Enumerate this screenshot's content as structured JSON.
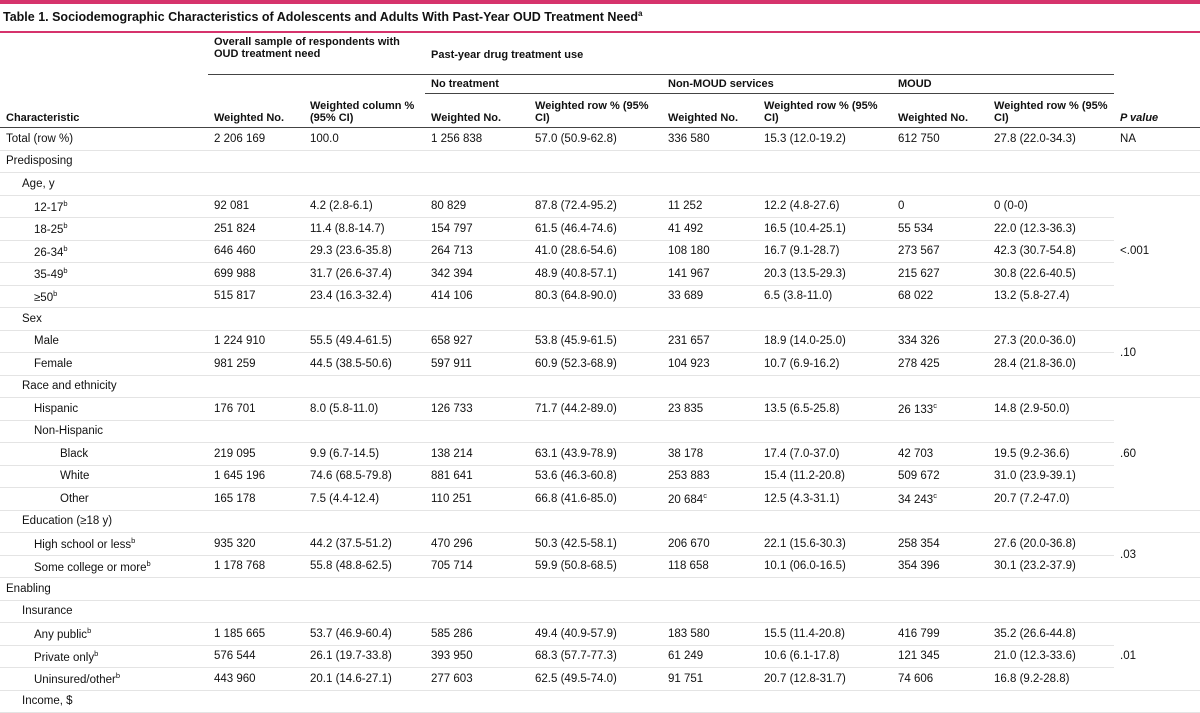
{
  "caption": {
    "text": "Table 1. Sociodemographic Characteristics of Adolescents and Adults With Past-Year OUD Treatment Need",
    "sup": "a"
  },
  "header": {
    "overall": "Overall sample of respondents with OUD treatment need",
    "past_year": "Past-year drug treatment use",
    "no_treatment": "No treatment",
    "non_moud": "Non-MOUD services",
    "moud": "MOUD",
    "characteristic": "Characteristic",
    "weighted_no": "Weighted No.",
    "weighted_col": "Weighted column % (95% CI)",
    "weighted_row": "Weighted row % (95% CI)",
    "p_value": "P value"
  },
  "p_values": {
    "total": "NA",
    "age": "<.001",
    "sex": ".10",
    "race": ".60",
    "education": ".03",
    "insurance": ".01"
  },
  "rows": [
    {
      "label": "Total (row %)",
      "indent": 1,
      "c": [
        "2 206 169",
        "100.0",
        "1 256 838",
        "57.0 (50.9-62.8)",
        "336 580",
        "15.3 (12.0-19.2)",
        "612 750",
        "27.8 (22.0-34.3)"
      ]
    },
    {
      "label": "Predisposing",
      "indent": 1,
      "c": []
    },
    {
      "label": "Age, y",
      "indent": 2,
      "c": []
    },
    {
      "label": "12-17",
      "sup": "b",
      "indent": 3,
      "c": [
        "92 081",
        "4.2 (2.8-6.1)",
        "80 829",
        "87.8 (72.4-95.2)",
        "11 252",
        "12.2 (4.8-27.6)",
        "0",
        "0 (0-0)"
      ]
    },
    {
      "label": "18-25",
      "sup": "b",
      "indent": 3,
      "c": [
        "251 824",
        "11.4 (8.8-14.7)",
        "154 797",
        "61.5 (46.4-74.6)",
        "41 492",
        "16.5 (10.4-25.1)",
        "55 534",
        "22.0 (12.3-36.3)"
      ]
    },
    {
      "label": "26-34",
      "sup": "b",
      "indent": 3,
      "c": [
        "646 460",
        "29.3 (23.6-35.8)",
        "264 713",
        "41.0 (28.6-54.6)",
        "108 180",
        "16.7 (9.1-28.7)",
        "273 567",
        "42.3 (30.7-54.8)"
      ]
    },
    {
      "label": "35-49",
      "sup": "b",
      "indent": 3,
      "c": [
        "699 988",
        "31.7 (26.6-37.4)",
        "342 394",
        "48.9 (40.8-57.1)",
        "141 967",
        "20.3 (13.5-29.3)",
        "215 627",
        "30.8 (22.6-40.5)"
      ]
    },
    {
      "label": "≥50",
      "sup": "b",
      "indent": 3,
      "c": [
        "515 817",
        "23.4 (16.3-32.4)",
        "414 106",
        "80.3 (64.8-90.0)",
        "33 689",
        "6.5 (3.8-11.0)",
        "68 022",
        "13.2 (5.8-27.4)"
      ]
    },
    {
      "label": "Sex",
      "indent": 2,
      "c": []
    },
    {
      "label": "Male",
      "indent": 3,
      "c": [
        "1 224 910",
        "55.5 (49.4-61.5)",
        "658 927",
        "53.8 (45.9-61.5)",
        "231 657",
        "18.9 (14.0-25.0)",
        "334 326",
        "27.3 (20.0-36.0)"
      ]
    },
    {
      "label": "Female",
      "indent": 3,
      "c": [
        "981 259",
        "44.5 (38.5-50.6)",
        "597 911",
        "60.9 (52.3-68.9)",
        "104 923",
        "10.7 (6.9-16.2)",
        "278 425",
        "28.4 (21.8-36.0)"
      ]
    },
    {
      "label": "Race and ethnicity",
      "indent": 2,
      "c": []
    },
    {
      "label": "Hispanic",
      "indent": 3,
      "c": [
        "176 701",
        "8.0 (5.8-11.0)",
        "126 733",
        "71.7 (44.2-89.0)",
        "23 835",
        "13.5 (6.5-25.8)",
        "26 133",
        "14.8 (2.9-50.0)"
      ],
      "sup6": "c"
    },
    {
      "label": "Non-Hispanic",
      "indent": 3,
      "c": []
    },
    {
      "label": "Black",
      "indent": 4,
      "c": [
        "219 095",
        "9.9 (6.7-14.5)",
        "138 214",
        "63.1 (43.9-78.9)",
        "38 178",
        "17.4 (7.0-37.0)",
        "42 703",
        "19.5 (9.2-36.6)"
      ]
    },
    {
      "label": "White",
      "indent": 4,
      "c": [
        "1 645 196",
        "74.6 (68.5-79.8)",
        "881 641",
        "53.6 (46.3-60.8)",
        "253 883",
        "15.4 (11.2-20.8)",
        "509 672",
        "31.0 (23.9-39.1)"
      ]
    },
    {
      "label": "Other",
      "indent": 4,
      "c": [
        "165 178",
        "7.5 (4.4-12.4)",
        "110 251",
        "66.8 (41.6-85.0)",
        "20 684",
        "12.5 (4.3-31.1)",
        "34 243",
        "20.7 (7.2-47.0)"
      ],
      "sup4": "c",
      "sup6": "c"
    },
    {
      "label": "Education (≥18 y)",
      "indent": 2,
      "c": []
    },
    {
      "label": "High school or less",
      "sup": "b",
      "indent": 3,
      "c": [
        "935 320",
        "44.2 (37.5-51.2)",
        "470 296",
        "50.3 (42.5-58.1)",
        "206 670",
        "22.1 (15.6-30.3)",
        "258 354",
        "27.6 (20.0-36.8)"
      ]
    },
    {
      "label": "Some college or more",
      "sup": "b",
      "indent": 3,
      "c": [
        "1 178 768",
        "55.8 (48.8-62.5)",
        "705 714",
        "59.9 (50.8-68.5)",
        "118 658",
        "10.1 (06.0-16.5)",
        "354 396",
        "30.1 (23.2-37.9)"
      ]
    },
    {
      "label": "Enabling",
      "indent": 1,
      "c": []
    },
    {
      "label": "Insurance",
      "indent": 2,
      "c": []
    },
    {
      "label": "Any public",
      "sup": "b",
      "indent": 3,
      "c": [
        "1 185 665",
        "53.7 (46.9-60.4)",
        "585 286",
        "49.4 (40.9-57.9)",
        "183 580",
        "15.5 (11.4-20.8)",
        "416 799",
        "35.2 (26.6-44.8)"
      ]
    },
    {
      "label": "Private only",
      "sup": "b",
      "indent": 3,
      "c": [
        "576 544",
        "26.1 (19.7-33.8)",
        "393 950",
        "68.3 (57.7-77.3)",
        "61 249",
        "10.6 (6.1-17.8)",
        "121 345",
        "21.0 (12.3-33.6)"
      ]
    },
    {
      "label": "Uninsured/other",
      "sup": "b",
      "indent": 3,
      "c": [
        "443 960",
        "20.1 (14.6-27.1)",
        "277 603",
        "62.5 (49.5-74.0)",
        "91 751",
        "20.7 (12.8-31.7)",
        "74 606",
        "16.8 (9.2-28.8)"
      ]
    },
    {
      "label": "Income, $",
      "indent": 2,
      "c": []
    }
  ]
}
